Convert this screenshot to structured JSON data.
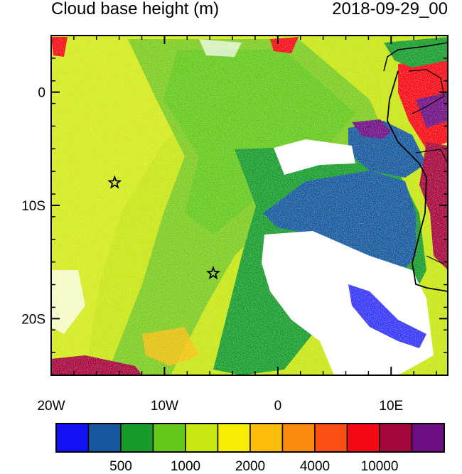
{
  "title_left": "Cloud base height (m)",
  "title_right": "2018-09-29_00",
  "map": {
    "lon_range": [
      -20,
      15
    ],
    "lat_range": [
      -25,
      5
    ],
    "x_ticks": [
      "20W",
      "10W",
      "0",
      "10E"
    ],
    "y_ticks": [
      "0",
      "10S",
      "20S"
    ],
    "markers": [
      {
        "name": "star",
        "lon": -14.4,
        "lat": -8.0
      },
      {
        "name": "star",
        "lon": -5.7,
        "lat": -16.0
      }
    ]
  },
  "colorbar": {
    "colors": [
      "#1212f5",
      "#15589e",
      "#179c2c",
      "#64c81a",
      "#c8e612",
      "#f7ed00",
      "#fbbd0a",
      "#fa8a0f",
      "#fb4f13",
      "#f40a14",
      "#a5063c",
      "#6e0e82"
    ],
    "labels": [
      "500",
      "1000",
      "2000",
      "4000",
      "10000"
    ]
  }
}
